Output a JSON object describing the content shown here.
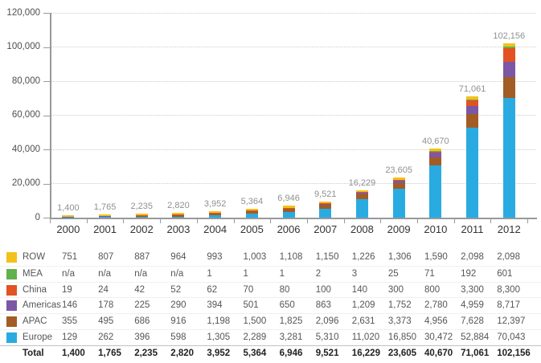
{
  "chart": {
    "ytick_labels": [
      "0",
      "20,000",
      "40,000",
      "60,000",
      "80,000",
      "100,000",
      "120,000"
    ],
    "total_labels": [
      "1,400",
      "1,765",
      "2,235",
      "2,820",
      "3,952",
      "5,364",
      "6,946",
      "9,521",
      "16,229",
      "23,605",
      "40,670",
      "71,061",
      "102,156"
    ]
  },
  "chart_data": {
    "type": "bar",
    "stacked": true,
    "title": "",
    "xlabel": "",
    "ylabel": "",
    "categories": [
      "2000",
      "2001",
      "2002",
      "2003",
      "2004",
      "2005",
      "2006",
      "2007",
      "2008",
      "2009",
      "2010",
      "2011",
      "2012"
    ],
    "series": [
      {
        "name": "Europe",
        "color": "#29abe2",
        "values": [
          129,
          262,
          396,
          598,
          1305,
          2289,
          3281,
          5310,
          11020,
          16850,
          30472,
          52884,
          70043
        ]
      },
      {
        "name": "APAC",
        "color": "#a35c24",
        "values": [
          355,
          495,
          686,
          916,
          1198,
          1500,
          1825,
          2096,
          2631,
          3373,
          4956,
          7628,
          12397
        ]
      },
      {
        "name": "Americas",
        "color": "#7b57a5",
        "values": [
          146,
          178,
          225,
          290,
          394,
          501,
          650,
          863,
          1209,
          1752,
          2780,
          4959,
          8717
        ]
      },
      {
        "name": "China",
        "color": "#e25223",
        "values": [
          19,
          24,
          42,
          52,
          62,
          70,
          80,
          100,
          140,
          300,
          800,
          3300,
          8300
        ]
      },
      {
        "name": "MEA",
        "color": "#61b24a",
        "values": [
          0,
          0,
          0,
          0,
          1,
          1,
          1,
          2,
          3,
          25,
          71,
          192,
          601
        ]
      },
      {
        "name": "ROW",
        "color": "#f2c11c",
        "values": [
          751,
          807,
          887,
          964,
          993,
          1003,
          1108,
          1150,
          1226,
          1306,
          1590,
          2098,
          2098
        ]
      }
    ],
    "totals": [
      1400,
      1765,
      2235,
      2820,
      3952,
      5364,
      6946,
      9521,
      16229,
      23605,
      40670,
      71061,
      102156
    ],
    "ylim": [
      0,
      120000
    ],
    "ytick_interval": 20000,
    "grid": "horizontal dotted",
    "legend_position": "table below chart"
  },
  "table": {
    "rows": [
      {
        "label": "ROW",
        "swatch_color": "#f2c11c",
        "bold": false,
        "values": [
          "751",
          "807",
          "887",
          "964",
          "993",
          "1,003",
          "1,108",
          "1,150",
          "1,226",
          "1,306",
          "1,590",
          "2,098",
          "2,098"
        ]
      },
      {
        "label": "MEA",
        "swatch_color": "#61b24a",
        "bold": false,
        "values": [
          "n/a",
          "n/a",
          "n/a",
          "n/a",
          "1",
          "1",
          "1",
          "2",
          "3",
          "25",
          "71",
          "192",
          "601"
        ]
      },
      {
        "label": "China",
        "swatch_color": "#e25223",
        "bold": false,
        "values": [
          "19",
          "24",
          "42",
          "52",
          "62",
          "70",
          "80",
          "100",
          "140",
          "300",
          "800",
          "3,300",
          "8,300"
        ]
      },
      {
        "label": "Americas",
        "swatch_color": "#7b57a5",
        "bold": false,
        "values": [
          "146",
          "178",
          "225",
          "290",
          "394",
          "501",
          "650",
          "863",
          "1,209",
          "1,752",
          "2,780",
          "4,959",
          "8,717"
        ]
      },
      {
        "label": "APAC",
        "swatch_color": "#a35c24",
        "bold": false,
        "values": [
          "355",
          "495",
          "686",
          "916",
          "1,198",
          "1,500",
          "1,825",
          "2,096",
          "2,631",
          "3,373",
          "4,956",
          "7,628",
          "12,397"
        ]
      },
      {
        "label": "Europe",
        "swatch_color": "#29abe2",
        "bold": false,
        "values": [
          "129",
          "262",
          "396",
          "598",
          "1,305",
          "2,289",
          "3,281",
          "5,310",
          "11,020",
          "16,850",
          "30,472",
          "52,884",
          "70,043"
        ]
      },
      {
        "label": "Total",
        "swatch_color": null,
        "bold": true,
        "values": [
          "1,400",
          "1,765",
          "2,235",
          "2,820",
          "3,952",
          "5,364",
          "6,946",
          "9,521",
          "16,229",
          "23,605",
          "40,670",
          "71,061",
          "102,156"
        ]
      }
    ]
  }
}
